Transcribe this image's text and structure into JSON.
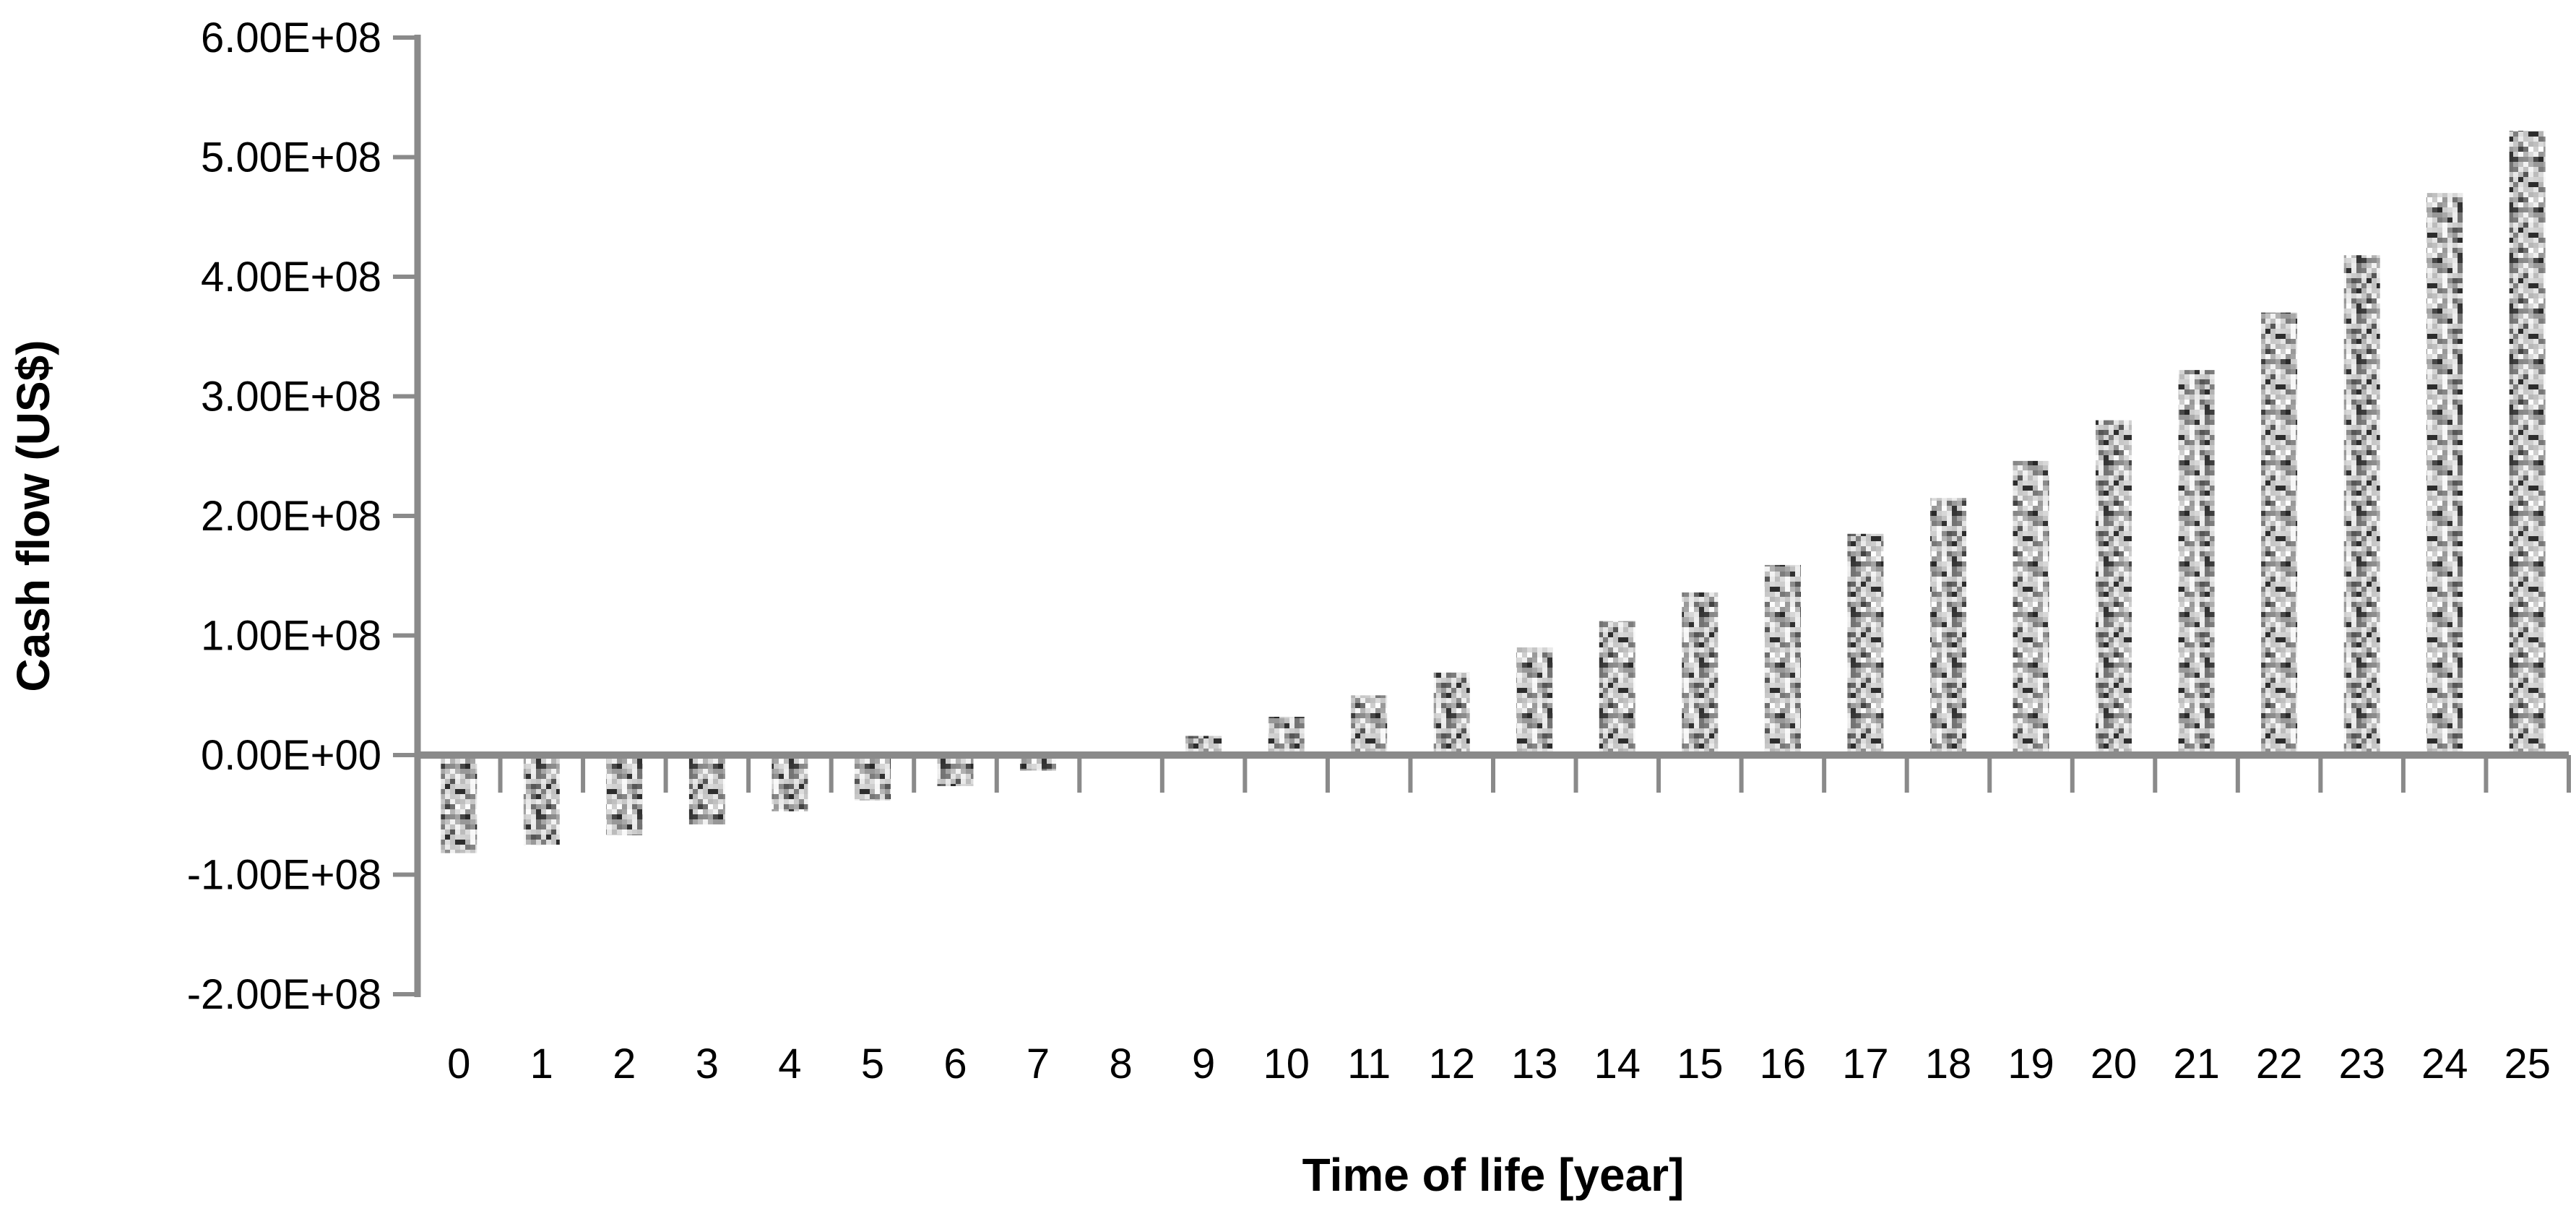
{
  "chart_data": {
    "type": "bar",
    "title": "",
    "xlabel": "Time of life [year]",
    "ylabel": "Cash flow (US$)",
    "categories": [
      "0",
      "1",
      "2",
      "3",
      "4",
      "5",
      "6",
      "7",
      "8",
      "9",
      "10",
      "11",
      "12",
      "13",
      "14",
      "15",
      "16",
      "17",
      "18",
      "19",
      "20",
      "21",
      "22",
      "23",
      "24",
      "25"
    ],
    "values": [
      -82000000,
      -75000000,
      -67000000,
      -58000000,
      -47000000,
      -38000000,
      -26000000,
      -13000000,
      -2000000,
      16000000,
      32000000,
      50000000,
      69000000,
      90000000,
      112000000,
      136000000,
      159000000,
      185000000,
      215000000,
      246000000,
      280000000,
      322000000,
      370000000,
      418000000,
      470000000,
      522000000
    ],
    "ylim": [
      -200000000,
      600000000
    ],
    "y_ticks": [
      {
        "value": 600000000,
        "label": "6.00E+08"
      },
      {
        "value": 500000000,
        "label": "5.00E+08"
      },
      {
        "value": 400000000,
        "label": "4.00E+08"
      },
      {
        "value": 300000000,
        "label": "3.00E+08"
      },
      {
        "value": 200000000,
        "label": "2.00E+08"
      },
      {
        "value": 100000000,
        "label": "1.00E+08"
      },
      {
        "value": 0,
        "label": "0.00E+00"
      },
      {
        "value": -100000000,
        "label": "-1.00E+08"
      },
      {
        "value": -200000000,
        "label": "-2.00E+08"
      }
    ],
    "grid": false,
    "legend": false,
    "bar_style": "gray-speckle-texture",
    "colors": {
      "axis": "#8a8a8a",
      "text": "#000000",
      "speckle_light": "#e6e6e6",
      "speckle_mid": "#b5b5b5",
      "speckle_dark": "#3c3c3c"
    }
  }
}
